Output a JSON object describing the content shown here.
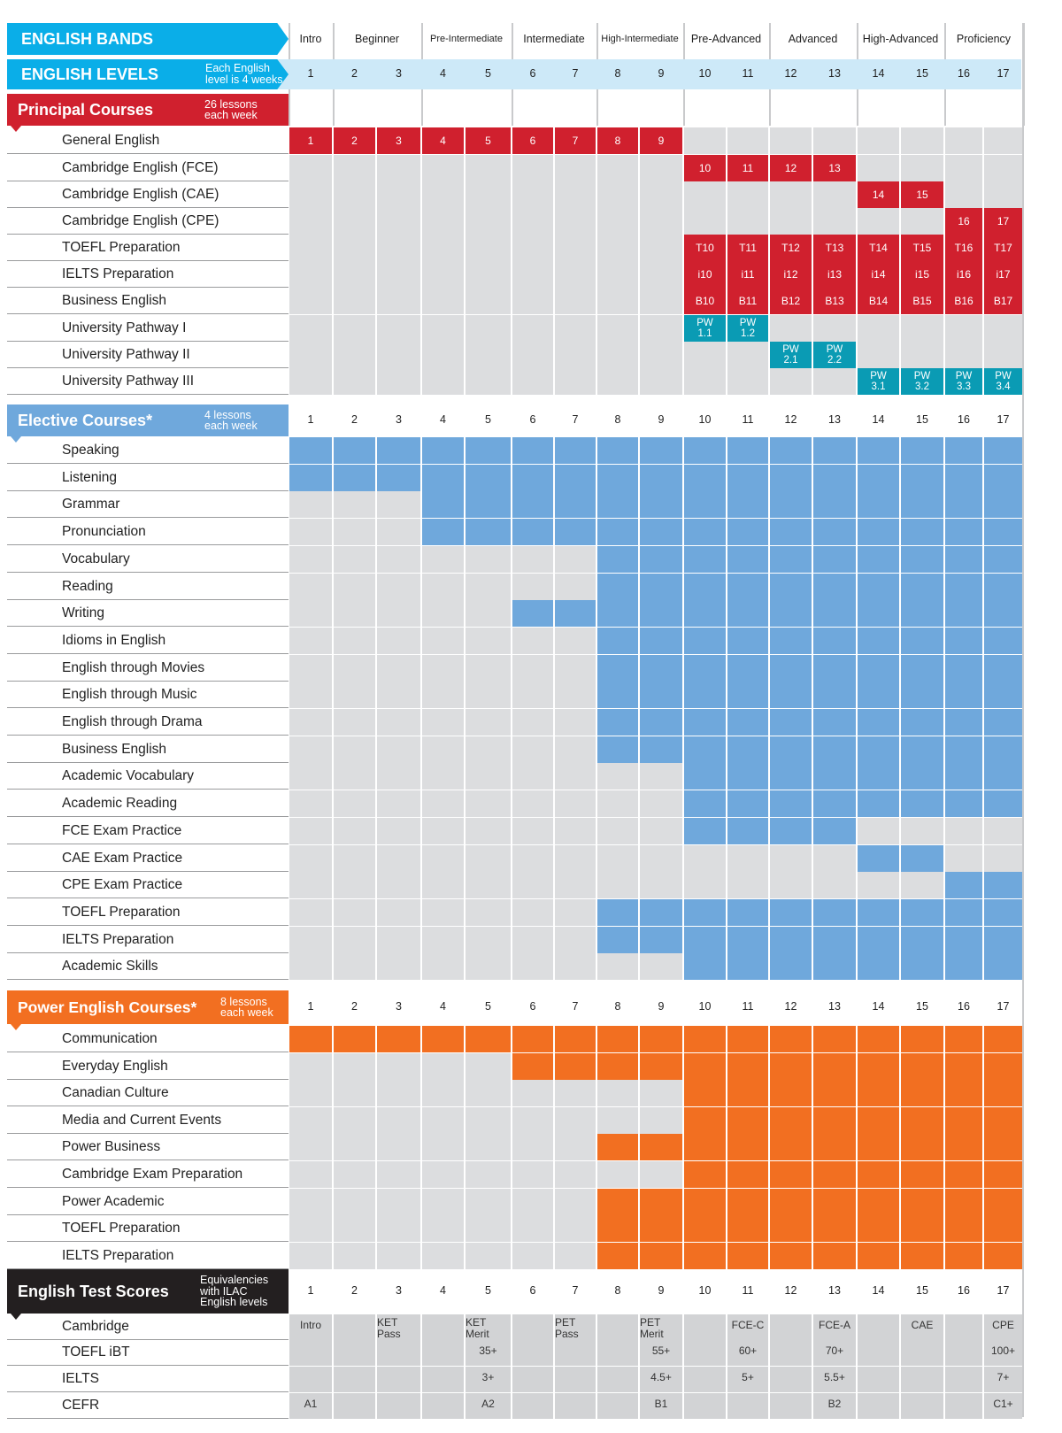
{
  "levels": [
    "1",
    "2",
    "3",
    "4",
    "5",
    "6",
    "7",
    "8",
    "9",
    "10",
    "11",
    "12",
    "13",
    "14",
    "15",
    "16",
    "17"
  ],
  "colors": {
    "cyan": "#0aaee8",
    "light_blue": "#cde9f8",
    "red": "#d0202e",
    "teal": "#0a9bb4",
    "blue": "#6fa8dc",
    "orange": "#f26f21",
    "black": "#231f20",
    "gray": "#dcdddf",
    "dark_gray": "#d2d3d5"
  },
  "bands_header": {
    "title": "ENGLISH BANDS",
    "bands": [
      {
        "name": "Intro",
        "span": 1
      },
      {
        "name": "Beginner",
        "span": 2
      },
      {
        "name": "Pre-Intermediate",
        "span": 2
      },
      {
        "name": "Intermediate",
        "span": 2
      },
      {
        "name": "High-Intermediate",
        "span": 2
      },
      {
        "name": "Pre-Advanced",
        "span": 2
      },
      {
        "name": "Advanced",
        "span": 2
      },
      {
        "name": "High-Advanced",
        "span": 2
      },
      {
        "name": "Proficiency",
        "span": 2
      }
    ]
  },
  "levels_header": {
    "title": "ENGLISH LEVELS",
    "note_line1": "Each English",
    "note_line2": "level is 4 weeks"
  },
  "sections": [
    {
      "id": "principal",
      "title": "Principal Courses",
      "note_line1": "26 lessons",
      "note_line2": "each week",
      "color": "red",
      "show_numbers": false,
      "rows": [
        {
          "name": "General English",
          "cells": [
            [
              1,
              "1"
            ],
            [
              2,
              "2"
            ],
            [
              3,
              "3"
            ],
            [
              4,
              "4"
            ],
            [
              5,
              "5"
            ],
            [
              6,
              "6"
            ],
            [
              7,
              "7"
            ],
            [
              8,
              "8"
            ],
            [
              9,
              "9"
            ]
          ]
        },
        {
          "name": "Cambridge English (FCE)",
          "cells": [
            [
              10,
              "10"
            ],
            [
              11,
              "11"
            ],
            [
              12,
              "12"
            ],
            [
              13,
              "13"
            ]
          ]
        },
        {
          "name": "Cambridge English (CAE)",
          "cells": [
            [
              14,
              "14"
            ],
            [
              15,
              "15"
            ]
          ]
        },
        {
          "name": "Cambridge English (CPE)",
          "cells": [
            [
              16,
              "16"
            ],
            [
              17,
              "17"
            ]
          ]
        },
        {
          "name": "TOEFL Preparation",
          "cells": [
            [
              10,
              "T10"
            ],
            [
              11,
              "T11"
            ],
            [
              12,
              "T12"
            ],
            [
              13,
              "T13"
            ],
            [
              14,
              "T14"
            ],
            [
              15,
              "T15"
            ],
            [
              16,
              "T16"
            ],
            [
              17,
              "T17"
            ]
          ]
        },
        {
          "name": "IELTS Preparation",
          "cells": [
            [
              10,
              "i10"
            ],
            [
              11,
              "i11"
            ],
            [
              12,
              "i12"
            ],
            [
              13,
              "i13"
            ],
            [
              14,
              "i14"
            ],
            [
              15,
              "i15"
            ],
            [
              16,
              "i16"
            ],
            [
              17,
              "i17"
            ]
          ]
        },
        {
          "name": "Business English",
          "cells": [
            [
              10,
              "B10"
            ],
            [
              11,
              "B11"
            ],
            [
              12,
              "B12"
            ],
            [
              13,
              "B13"
            ],
            [
              14,
              "B14"
            ],
            [
              15,
              "B15"
            ],
            [
              16,
              "B16"
            ],
            [
              17,
              "B17"
            ]
          ]
        },
        {
          "name": "University Pathway I",
          "teal": true,
          "cells": [
            [
              10,
              "PW 1.1"
            ],
            [
              11,
              "PW 1.2"
            ]
          ]
        },
        {
          "name": "University Pathway II",
          "teal": true,
          "cells": [
            [
              12,
              "PW 2.1"
            ],
            [
              13,
              "PW 2.2"
            ]
          ]
        },
        {
          "name": "University Pathway III",
          "teal": true,
          "cells": [
            [
              14,
              "PW 3.1"
            ],
            [
              15,
              "PW 3.2"
            ],
            [
              16,
              "PW 3.3"
            ],
            [
              17,
              "PW 3.4"
            ]
          ]
        }
      ]
    },
    {
      "id": "elective",
      "title": "Elective Courses*",
      "note_line1": "4 lessons",
      "note_line2": "each week",
      "color": "blue",
      "show_numbers": true,
      "rows": [
        {
          "name": "Speaking",
          "from": 1,
          "to": 17
        },
        {
          "name": "Listening",
          "from": 1,
          "to": 17
        },
        {
          "name": "Grammar",
          "from": 4,
          "to": 17
        },
        {
          "name": "Pronunciation",
          "from": 4,
          "to": 17
        },
        {
          "name": "Vocabulary",
          "from": 8,
          "to": 17
        },
        {
          "name": "Reading",
          "from": 8,
          "to": 17
        },
        {
          "name": "Writing",
          "from": 6,
          "to": 17
        },
        {
          "name": "Idioms in English",
          "from": 8,
          "to": 17
        },
        {
          "name": "English through Movies",
          "from": 8,
          "to": 17
        },
        {
          "name": "English through Music",
          "from": 8,
          "to": 17
        },
        {
          "name": "English through Drama",
          "from": 8,
          "to": 17
        },
        {
          "name": "Business English",
          "from": 8,
          "to": 17
        },
        {
          "name": "Academic Vocabulary",
          "from": 10,
          "to": 17
        },
        {
          "name": "Academic Reading",
          "from": 10,
          "to": 17
        },
        {
          "name": "FCE Exam Practice",
          "from": 10,
          "to": 13
        },
        {
          "name": "CAE Exam Practice",
          "from": 14,
          "to": 15
        },
        {
          "name": "CPE Exam Practice",
          "from": 16,
          "to": 17
        },
        {
          "name": "TOEFL Preparation",
          "from": 8,
          "to": 17
        },
        {
          "name": "IELTS Preparation",
          "from": 8,
          "to": 17
        },
        {
          "name": "Academic Skills",
          "from": 10,
          "to": 17
        }
      ]
    },
    {
      "id": "power",
      "title": "Power English Courses*",
      "note_line1": "8 lessons",
      "note_line2": "each week",
      "color": "orange",
      "show_numbers": true,
      "rows": [
        {
          "name": "Communication",
          "from": 1,
          "to": 17
        },
        {
          "name": "Everyday English",
          "from": 6,
          "to": 17
        },
        {
          "name": "Canadian Culture",
          "from": 10,
          "to": 17
        },
        {
          "name": "Media and Current Events",
          "from": 10,
          "to": 17
        },
        {
          "name": "Power Business",
          "from": 8,
          "to": 17
        },
        {
          "name": "Cambridge Exam Preparation",
          "from": 10,
          "to": 17
        },
        {
          "name": "Power Academic",
          "from": 8,
          "to": 17
        },
        {
          "name": "TOEFL Preparation",
          "from": 8,
          "to": 17
        },
        {
          "name": "IELTS Preparation",
          "from": 8,
          "to": 17
        }
      ]
    },
    {
      "id": "tests",
      "title": "English Test Scores",
      "note_line1": "Equivalencies",
      "note_line2": "with ILAC",
      "note_line3": "English levels",
      "color": "black",
      "show_numbers": true,
      "rows": [
        {
          "name": "Cambridge",
          "cells": [
            [
              1,
              "Intro"
            ],
            [
              3,
              "KET Pass"
            ],
            [
              5,
              "KET Merit"
            ],
            [
              7,
              "PET Pass"
            ],
            [
              9,
              "PET Merit"
            ],
            [
              11,
              "FCE-C"
            ],
            [
              13,
              "FCE-A"
            ],
            [
              15,
              "CAE"
            ],
            [
              17,
              "CPE"
            ]
          ]
        },
        {
          "name": "TOEFL iBT",
          "cells": [
            [
              5,
              "35+"
            ],
            [
              9,
              "55+"
            ],
            [
              11,
              "60+"
            ],
            [
              13,
              "70+"
            ],
            [
              17,
              "100+"
            ]
          ]
        },
        {
          "name": "IELTS",
          "cells": [
            [
              5,
              "3+"
            ],
            [
              9,
              "4.5+"
            ],
            [
              11,
              "5+"
            ],
            [
              13,
              "5.5+"
            ],
            [
              17,
              "7+"
            ]
          ]
        },
        {
          "name": "CEFR",
          "cells": [
            [
              1,
              "A1"
            ],
            [
              5,
              "A2"
            ],
            [
              9,
              "B1"
            ],
            [
              13,
              "B2"
            ],
            [
              17,
              "C1+"
            ]
          ]
        }
      ]
    }
  ]
}
